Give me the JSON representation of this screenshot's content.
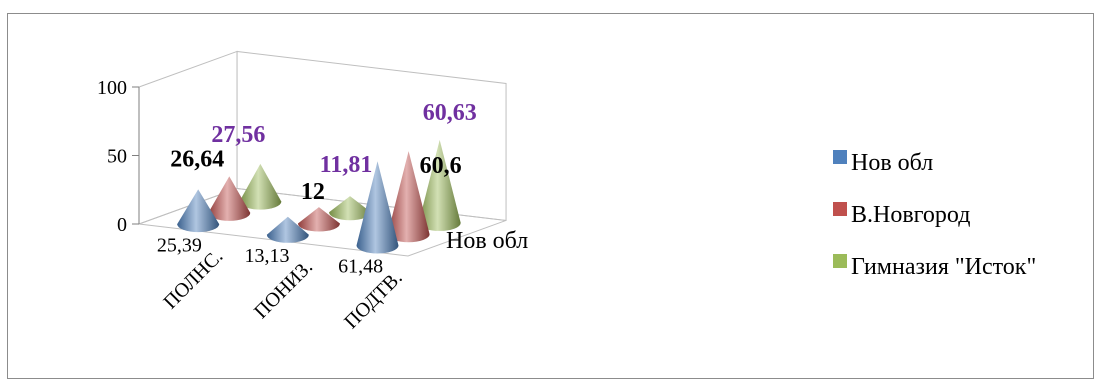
{
  "chart_data": {
    "type": "bar",
    "subtype": "3d-cone",
    "title": "",
    "categories": [
      "ПОЛНС.",
      "ПОНИЗ.",
      "ПОДТВ."
    ],
    "series": [
      {
        "name": "Нов обл",
        "values": [
          25.39,
          13.13,
          61.48
        ],
        "labels": [
          "25,39",
          "13,13",
          "61,48"
        ],
        "color": "#4f81bd"
      },
      {
        "name": "В.Новгород",
        "values": [
          26.64,
          12,
          60.6
        ],
        "labels": [
          "26,64",
          "12",
          "60,6"
        ],
        "color": "#c0504d"
      },
      {
        "name": "Гимназия \"Исток\"",
        "values": [
          27.56,
          11.81,
          60.63
        ],
        "labels": [
          "27,56",
          "11,81",
          "60,63"
        ],
        "color": "#9bbb59"
      }
    ],
    "depth_axis_label": "Нов обл",
    "ylim": [
      0,
      100
    ],
    "yticks": [
      "0",
      "50",
      "100"
    ],
    "label_colors": {
      "В.Новгород": "#000000",
      "Гимназия \"Исток\"": "#7030a0"
    },
    "legend_position": "right",
    "grid": false
  }
}
